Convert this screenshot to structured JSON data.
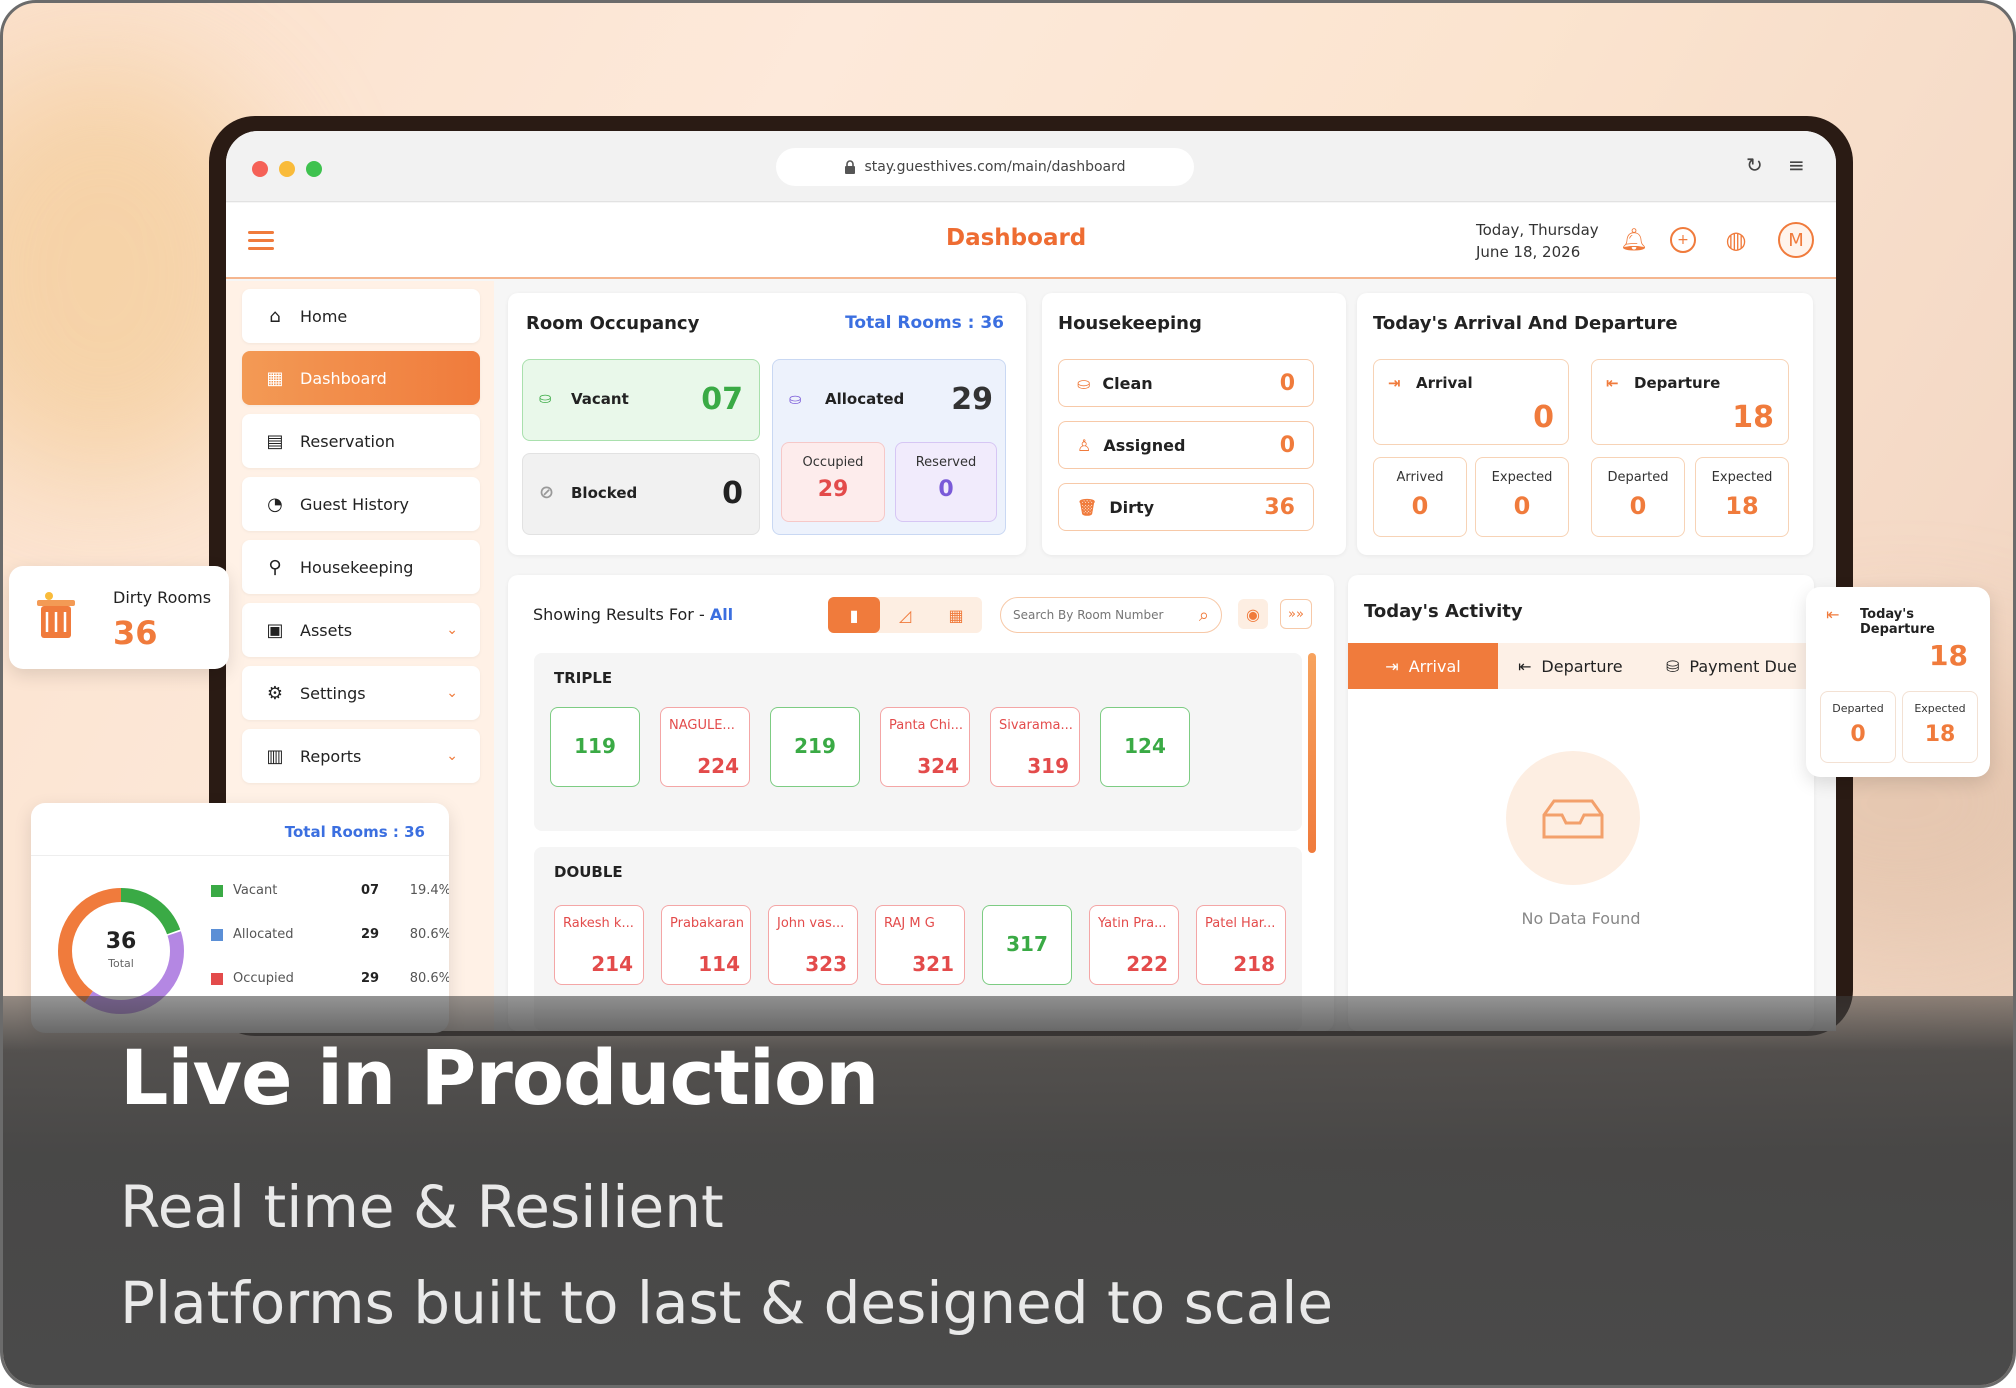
{
  "browser": {
    "url": "stay.guesthives.com/main/dashboard",
    "reload_icon": "reload-icon",
    "menu_icon": "menu-icon"
  },
  "header": {
    "title": "Dashboard",
    "date_line1": "Today, Thursday",
    "date_line2": "June 18, 2026",
    "avatar": "M"
  },
  "sidebar": {
    "items": [
      {
        "label": "Home",
        "icon": "home-icon"
      },
      {
        "label": "Dashboard",
        "icon": "grid-icon"
      },
      {
        "label": "Reservation",
        "icon": "calendar-icon"
      },
      {
        "label": "Guest History",
        "icon": "history-icon"
      },
      {
        "label": "Housekeeping",
        "icon": "broom-icon"
      },
      {
        "label": "Assets",
        "icon": "box-icon"
      },
      {
        "label": "Settings",
        "icon": "gear-icon"
      },
      {
        "label": "Reports",
        "icon": "clipboard-icon"
      }
    ]
  },
  "occupancy": {
    "title": "Room Occupancy",
    "total_label": "Total Rooms : 36",
    "vacant_label": "Vacant",
    "vacant": "07",
    "allocated_label": "Allocated",
    "allocated": "29",
    "blocked_label": "Blocked",
    "blocked": "0",
    "occupied_label": "Occupied",
    "occupied": "29",
    "reserved_label": "Reserved",
    "reserved": "0"
  },
  "housekeeping": {
    "title": "Housekeeping",
    "rows": [
      {
        "label": "Clean",
        "value": "0"
      },
      {
        "label": "Assigned",
        "value": "0"
      },
      {
        "label": "Dirty",
        "value": "36"
      }
    ]
  },
  "arrival_departure": {
    "title": "Today's Arrival And Departure",
    "arrival_label": "Arrival",
    "arrival": "0",
    "departure_label": "Departure",
    "departure": "18",
    "arrived_label": "Arrived",
    "arrived": "0",
    "expected_label": "Expected",
    "arr_expected": "0",
    "departed_label": "Departed",
    "departed": "0",
    "dep_expected": "18"
  },
  "rooms": {
    "showing": "Showing Results For -",
    "filter": "All",
    "search_placeholder": "Search By Room Number",
    "triple_title": "TRIPLE",
    "triple": [
      {
        "name": "",
        "no": "119",
        "status": "g"
      },
      {
        "name": "NAGULE...",
        "no": "224",
        "status": "r"
      },
      {
        "name": "",
        "no": "219",
        "status": "g"
      },
      {
        "name": "Panta Chi...",
        "no": "324",
        "status": "r"
      },
      {
        "name": "Sivarama...",
        "no": "319",
        "status": "r"
      },
      {
        "name": "",
        "no": "124",
        "status": "g"
      }
    ],
    "double_title": "DOUBLE",
    "double": [
      {
        "name": "Rakesh k...",
        "no": "214",
        "status": "r"
      },
      {
        "name": "Prabakaran",
        "no": "114",
        "status": "r"
      },
      {
        "name": "John vas...",
        "no": "323",
        "status": "r"
      },
      {
        "name": "RAJ M G",
        "no": "321",
        "status": "r"
      },
      {
        "name": "",
        "no": "317",
        "status": "g"
      },
      {
        "name": "Yatin Pra...",
        "no": "222",
        "status": "r"
      },
      {
        "name": "Patel Har...",
        "no": "218",
        "status": "r"
      }
    ]
  },
  "activity": {
    "title": "Today's Activity",
    "tabs": [
      "Arrival",
      "Departure",
      "Payment Due"
    ],
    "empty": "No Data Found"
  },
  "float_dirty": {
    "label": "Dirty Rooms",
    "value": "36"
  },
  "float_departure": {
    "title": "Today's Departure",
    "value": "18",
    "departed_label": "Departed",
    "departed": "0",
    "expected_label": "Expected",
    "expected": "18"
  },
  "float_chart": {
    "total_label": "Total Rooms : 36",
    "center_value": "36",
    "center_label": "Total",
    "legend": [
      {
        "label": "Vacant",
        "count": "07",
        "pct": "19.4%",
        "color": "#3aaa45"
      },
      {
        "label": "Allocated",
        "count": "29",
        "pct": "80.6%",
        "color": "#5b8fd6"
      },
      {
        "label": "Occupied",
        "count": "29",
        "pct": "80.6%",
        "color": "#e34b4b"
      }
    ]
  },
  "overlay": {
    "title": "Live in Production",
    "line1": "Real time & Resilient",
    "line2": "Platforms built to last & designed to scale"
  },
  "colors": {
    "accent": "#f07b3c",
    "blue": "#3b6fe0",
    "green": "#3aaa45",
    "red": "#e34b4b"
  }
}
